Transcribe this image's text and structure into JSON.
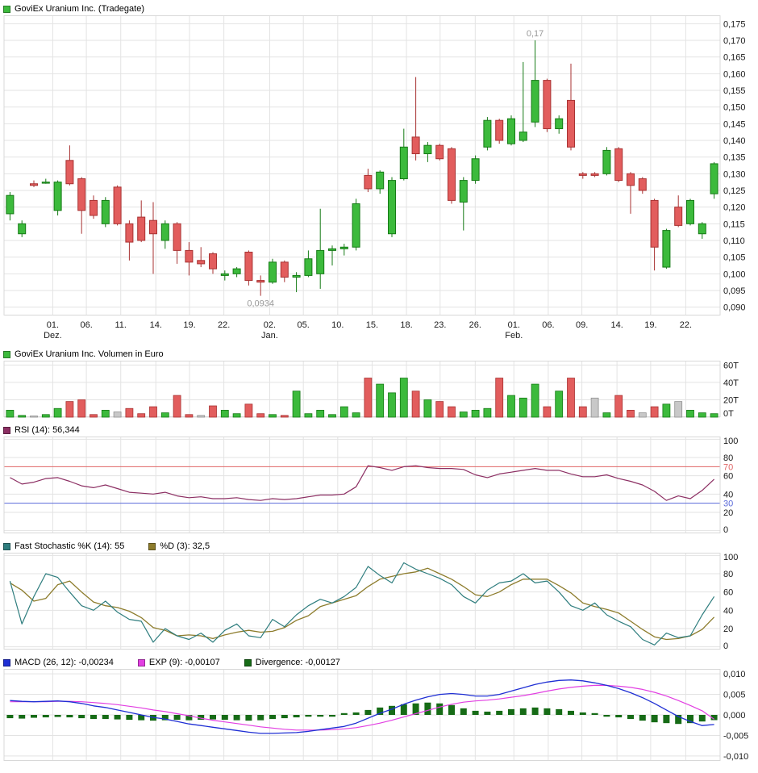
{
  "colors": {
    "up": "#3cba3c",
    "up_border": "#157a15",
    "down": "#e25d5d",
    "down_border": "#a83232",
    "neutral": "#c8c8c8",
    "neutral_border": "#909090",
    "grid": "#e3e3e3",
    "frame": "#d8d8d8",
    "axis_text": "#1a1a1a",
    "annotation": "#999999",
    "rsi": "#8c2f63",
    "rsi_upper": "#e06666",
    "rsi_lower": "#5a6ad9",
    "stoch_k": "#2e7d7e",
    "stoch_d": "#8d7c2c",
    "macd": "#1f2fd4",
    "exp": "#e23fe2",
    "divergence": "#166b16"
  },
  "x_axis": {
    "labels": [
      {
        "day": "01.",
        "month": "Dez.",
        "f": 0.068
      },
      {
        "day": "06.",
        "f": 0.115
      },
      {
        "day": "11.",
        "f": 0.163
      },
      {
        "day": "14.",
        "f": 0.212
      },
      {
        "day": "19.",
        "f": 0.259
      },
      {
        "day": "22.",
        "f": 0.307
      },
      {
        "day": "02.",
        "month": "Jan.",
        "f": 0.371
      },
      {
        "day": "05.",
        "f": 0.418
      },
      {
        "day": "10.",
        "f": 0.466
      },
      {
        "day": "15.",
        "f": 0.514
      },
      {
        "day": "18.",
        "f": 0.562
      },
      {
        "day": "23.",
        "f": 0.609
      },
      {
        "day": "26.",
        "f": 0.658
      },
      {
        "day": "01.",
        "month": "Feb.",
        "f": 0.712
      },
      {
        "day": "06.",
        "f": 0.76
      },
      {
        "day": "09.",
        "f": 0.807
      },
      {
        "day": "14.",
        "f": 0.856
      },
      {
        "day": "19.",
        "f": 0.903
      },
      {
        "day": "22.",
        "f": 0.952
      }
    ]
  },
  "chart_data": [
    {
      "type": "candlestick",
      "title": "GoviEx Uranium Inc. (Tradegate)",
      "ylim": [
        0.0875,
        0.1775
      ],
      "ytick_values": [
        0.175,
        0.17,
        0.165,
        0.16,
        0.155,
        0.15,
        0.145,
        0.14,
        0.135,
        0.13,
        0.125,
        0.12,
        0.115,
        0.11,
        0.105,
        0.1,
        0.095,
        0.09
      ],
      "ytick_labels": [
        "0,175",
        "0,170",
        "0,165",
        "0,160",
        "0,155",
        "0,150",
        "0,145",
        "0,140",
        "0,135",
        "0,130",
        "0,125",
        "0,120",
        "0,115",
        "0,110",
        "0,105",
        "0,100",
        "0,095",
        "0,090"
      ],
      "annotations": [
        {
          "text": "0,17",
          "index": 44,
          "pos": "above"
        },
        {
          "text": "0,0934",
          "index": 21,
          "pos": "below"
        }
      ],
      "candles": [
        [
          0.118,
          0.1245,
          0.116,
          0.1235
        ],
        [
          0.112,
          0.116,
          0.111,
          0.115
        ],
        [
          0.127,
          0.128,
          0.126,
          0.1265
        ],
        [
          0.1275,
          0.1285,
          0.127,
          0.1275
        ],
        [
          0.119,
          0.128,
          0.1175,
          0.1275
        ],
        [
          0.134,
          0.1385,
          0.1265,
          0.127
        ],
        [
          0.1285,
          0.129,
          0.112,
          0.119
        ],
        [
          0.122,
          0.1235,
          0.1165,
          0.1175
        ],
        [
          0.115,
          0.123,
          0.114,
          0.122
        ],
        [
          0.126,
          0.1265,
          0.1145,
          0.115
        ],
        [
          0.115,
          0.116,
          0.104,
          0.1095
        ],
        [
          0.117,
          0.122,
          0.1095,
          0.11
        ],
        [
          0.116,
          0.1215,
          0.1,
          0.112
        ],
        [
          0.11,
          0.116,
          0.1075,
          0.115
        ],
        [
          0.115,
          0.1155,
          0.103,
          0.107
        ],
        [
          0.107,
          0.1095,
          0.0995,
          0.1035
        ],
        [
          0.104,
          0.108,
          0.102,
          0.103
        ],
        [
          0.106,
          0.1065,
          0.1,
          0.1015
        ],
        [
          0.0995,
          0.101,
          0.098,
          0.1
        ],
        [
          0.1,
          0.102,
          0.099,
          0.1015
        ],
        [
          0.1065,
          0.107,
          0.0965,
          0.098
        ],
        [
          0.098,
          0.0995,
          0.0934,
          0.0975
        ],
        [
          0.0975,
          0.1045,
          0.097,
          0.1035
        ],
        [
          0.1035,
          0.104,
          0.0975,
          0.099
        ],
        [
          0.099,
          0.1005,
          0.0945,
          0.0995
        ],
        [
          0.0995,
          0.107,
          0.099,
          0.1045
        ],
        [
          0.1,
          0.1195,
          0.0955,
          0.107
        ],
        [
          0.107,
          0.1085,
          0.1025,
          0.1075
        ],
        [
          0.1075,
          0.109,
          0.1055,
          0.108
        ],
        [
          0.108,
          0.1225,
          0.107,
          0.121
        ],
        [
          0.1295,
          0.1315,
          0.1245,
          0.1255
        ],
        [
          0.1255,
          0.131,
          0.124,
          0.1305
        ],
        [
          0.112,
          0.129,
          0.111,
          0.128
        ],
        [
          0.1285,
          0.1435,
          0.128,
          0.138
        ],
        [
          0.141,
          0.159,
          0.134,
          0.136
        ],
        [
          0.136,
          0.1395,
          0.1335,
          0.1385
        ],
        [
          0.1385,
          0.139,
          0.134,
          0.1345
        ],
        [
          0.1375,
          0.138,
          0.121,
          0.122
        ],
        [
          0.1215,
          0.129,
          0.113,
          0.128
        ],
        [
          0.128,
          0.1355,
          0.127,
          0.1345
        ],
        [
          0.138,
          0.147,
          0.137,
          0.146
        ],
        [
          0.146,
          0.1465,
          0.139,
          0.14
        ],
        [
          0.139,
          0.1475,
          0.1385,
          0.1465
        ],
        [
          0.14,
          0.1635,
          0.1395,
          0.1425
        ],
        [
          0.1455,
          0.17,
          0.144,
          0.158
        ],
        [
          0.158,
          0.1585,
          0.1425,
          0.1435
        ],
        [
          0.1435,
          0.1475,
          0.142,
          0.1465
        ],
        [
          0.152,
          0.163,
          0.137,
          0.138
        ],
        [
          0.13,
          0.1305,
          0.1285,
          0.1295
        ],
        [
          0.13,
          0.1305,
          0.129,
          0.1295
        ],
        [
          0.13,
          0.138,
          0.1295,
          0.137
        ],
        [
          0.1375,
          0.138,
          0.1275,
          0.128
        ],
        [
          0.13,
          0.1305,
          0.118,
          0.1265
        ],
        [
          0.1285,
          0.129,
          0.124,
          0.125
        ],
        [
          0.122,
          0.1225,
          0.101,
          0.108
        ],
        [
          0.102,
          0.1135,
          0.1015,
          0.113
        ],
        [
          0.12,
          0.1235,
          0.114,
          0.1145
        ],
        [
          0.115,
          0.1225,
          0.1145,
          0.122
        ],
        [
          0.112,
          0.1155,
          0.1105,
          0.115
        ],
        [
          0.124,
          0.1335,
          0.1225,
          0.133
        ]
      ]
    },
    {
      "type": "bar",
      "title": "GoviEx Uranium Inc. Volumen in Euro",
      "ylim": [
        0,
        65
      ],
      "yticks": [
        {
          "v": 60,
          "label": "60T"
        },
        {
          "v": 40,
          "label": "40T"
        },
        {
          "v": 20,
          "label": "20T"
        },
        {
          "v": 0,
          "label": "0T"
        }
      ],
      "values": [
        8,
        2,
        1,
        3,
        10,
        18,
        20,
        3,
        8,
        6,
        10,
        4,
        12,
        5,
        25,
        3,
        2,
        13,
        8,
        4,
        15,
        4,
        3,
        2,
        30,
        4,
        8,
        3,
        12,
        5,
        45,
        38,
        28,
        45,
        30,
        20,
        18,
        12,
        6,
        8,
        10,
        45,
        25,
        22,
        38,
        12,
        30,
        45,
        12,
        22,
        5,
        25,
        8,
        5,
        12,
        15,
        18,
        8,
        5,
        4
      ],
      "bar_colors": "ggnggrrrgnrrrgrrnrggrrgrggggggrgggrgrrgggrgggrgrrngrrnrgnggg"
    },
    {
      "type": "line",
      "title": "RSI (14): 56,344",
      "ylim": [
        -3,
        103
      ],
      "yticks": [
        {
          "v": 100,
          "label": "100"
        },
        {
          "v": 80,
          "label": "80"
        },
        {
          "v": 60,
          "label": "60"
        },
        {
          "v": 40,
          "label": "40"
        },
        {
          "v": 20,
          "label": "20"
        },
        {
          "v": 0,
          "label": "0"
        }
      ],
      "hlines": [
        {
          "v": 70,
          "label": "70",
          "color": "#e06666"
        },
        {
          "v": 30,
          "label": "30",
          "color": "#5a6ad9"
        }
      ],
      "values": [
        58,
        51,
        53,
        57,
        58,
        54,
        49,
        47,
        50,
        46,
        42,
        41,
        40,
        42,
        38,
        36,
        37,
        35,
        35,
        36,
        34,
        33,
        35,
        34,
        35,
        37,
        39,
        39,
        40,
        48,
        71,
        69,
        66,
        70,
        71,
        69,
        68,
        68,
        67,
        61,
        58,
        62,
        64,
        66,
        68,
        66,
        66,
        62,
        59,
        59,
        61,
        57,
        54,
        50,
        43,
        33,
        38,
        35,
        44,
        56.3
      ]
    },
    {
      "type": "line",
      "title": "Fast Stochastic",
      "ylim": [
        -3,
        103
      ],
      "yticks": [
        {
          "v": 100,
          "label": "100"
        },
        {
          "v": 80,
          "label": "80"
        },
        {
          "v": 60,
          "label": "60"
        },
        {
          "v": 40,
          "label": "40"
        },
        {
          "v": 20,
          "label": "20"
        },
        {
          "v": 0,
          "label": "0"
        }
      ],
      "series": [
        {
          "name": "Fast Stochastic %K (14): 55",
          "values": [
            72,
            25,
            55,
            80,
            76,
            60,
            45,
            40,
            50,
            38,
            30,
            28,
            5,
            20,
            12,
            8,
            15,
            5,
            18,
            25,
            12,
            10,
            30,
            22,
            35,
            45,
            52,
            48,
            55,
            65,
            88,
            78,
            70,
            92,
            85,
            80,
            75,
            68,
            55,
            48,
            62,
            70,
            72,
            80,
            70,
            72,
            60,
            45,
            40,
            48,
            35,
            28,
            22,
            8,
            2,
            15,
            10,
            12,
            35,
            55
          ]
        },
        {
          "name": "%D (3): 32,5",
          "values": [
            70,
            62,
            50,
            53,
            68,
            72,
            60,
            49,
            45,
            43,
            39,
            32,
            21,
            18,
            12,
            13,
            12,
            9,
            13,
            16,
            18,
            16,
            17,
            21,
            29,
            34,
            44,
            48,
            52,
            56,
            66,
            74,
            77,
            80,
            82,
            86,
            80,
            74,
            66,
            57,
            55,
            60,
            68,
            74,
            74,
            74,
            67,
            59,
            48,
            44,
            41,
            37,
            28,
            19,
            11,
            8,
            9,
            12,
            19,
            32.5
          ]
        }
      ]
    },
    {
      "type": "macd",
      "labels": {
        "macd": "MACD (26, 12): -0,00234",
        "exp": "EXP (9): -0,00107",
        "divergence": "Divergence: -0,00127"
      },
      "ylim": [
        -0.0112,
        0.0112
      ],
      "yticks": [
        {
          "v": 0.01,
          "label": "0,010"
        },
        {
          "v": 0.005,
          "label": "0,005"
        },
        {
          "v": 0,
          "label": "0,000"
        },
        {
          "v": -0.005,
          "label": "-0,005"
        },
        {
          "v": -0.01,
          "label": "-0,010"
        }
      ],
      "macd": [
        0.0035,
        0.0033,
        0.0032,
        0.0033,
        0.0034,
        0.0032,
        0.0028,
        0.0022,
        0.0018,
        0.0012,
        0.0006,
        0,
        -0.0006,
        -0.001,
        -0.0016,
        -0.0022,
        -0.0026,
        -0.003,
        -0.0034,
        -0.0038,
        -0.0042,
        -0.0045,
        -0.0045,
        -0.0044,
        -0.0043,
        -0.004,
        -0.0036,
        -0.0032,
        -0.0028,
        -0.002,
        -0.0008,
        0.0004,
        0.0014,
        0.0026,
        0.0036,
        0.0044,
        0.005,
        0.0052,
        0.005,
        0.0046,
        0.0046,
        0.005,
        0.0058,
        0.0066,
        0.0074,
        0.008,
        0.0084,
        0.0085,
        0.0083,
        0.0078,
        0.0072,
        0.0064,
        0.0054,
        0.0042,
        0.0028,
        0.0012,
        -0.0004,
        -0.0016,
        -0.0026,
        -0.00234
      ],
      "exp": [
        0.0032,
        0.0032,
        0.0032,
        0.0032,
        0.0033,
        0.0033,
        0.0032,
        0.003,
        0.0028,
        0.0025,
        0.0021,
        0.0017,
        0.0012,
        0.0008,
        0.0003,
        -0.0002,
        -0.0008,
        -0.0013,
        -0.0017,
        -0.0021,
        -0.0025,
        -0.0029,
        -0.0032,
        -0.0035,
        -0.0037,
        -0.0037,
        -0.0037,
        -0.0036,
        -0.0034,
        -0.0031,
        -0.0026,
        -0.002,
        -0.0013,
        -0.0005,
        0.0003,
        0.0011,
        0.0019,
        0.0026,
        0.0031,
        0.0034,
        0.0036,
        0.0039,
        0.0043,
        0.0047,
        0.0052,
        0.0058,
        0.0063,
        0.0067,
        0.007,
        0.0072,
        0.0072,
        0.007,
        0.0067,
        0.0062,
        0.0055,
        0.0046,
        0.0035,
        0.0023,
        0.001,
        -0.00107
      ],
      "divergence": [
        -0.0008,
        -0.0009,
        -0.0007,
        -0.0006,
        -0.0005,
        -0.0006,
        -0.0008,
        -0.001,
        -0.001,
        -0.0011,
        -0.0012,
        -0.0013,
        -0.0014,
        -0.0013,
        -0.0012,
        -0.0013,
        -0.0012,
        -0.0011,
        -0.0012,
        -0.0013,
        -0.0014,
        -0.0013,
        -0.001,
        -0.0008,
        -0.0006,
        -0.0004,
        -0.0003,
        -0.0002,
        0.0002,
        0.0006,
        0.0012,
        0.0018,
        0.0022,
        0.0026,
        0.0028,
        0.003,
        0.0028,
        0.0024,
        0.0016,
        0.001,
        0.0008,
        0.001,
        0.0014,
        0.0016,
        0.0018,
        0.0016,
        0.0014,
        0.001,
        0.0006,
        0.0002,
        -0.0002,
        -0.0006,
        -0.001,
        -0.0014,
        -0.0018,
        -0.002,
        -0.0022,
        -0.002,
        -0.0016,
        -0.00127
      ]
    }
  ]
}
